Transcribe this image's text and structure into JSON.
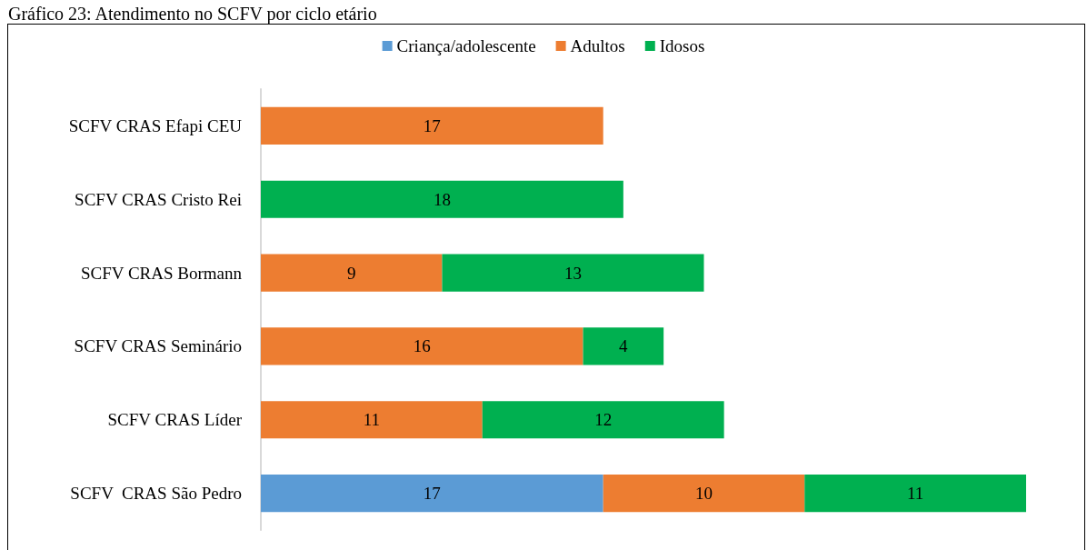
{
  "chart_data": {
    "type": "bar",
    "title": "Gráfico 23: Atendimento no SCFV por ciclo etário",
    "orientation": "horizontal",
    "stacked": true,
    "data_labels": true,
    "legend": "top",
    "categories": [
      "SCFV CRAS Efapi CEU",
      "SCFV CRAS Cristo Rei",
      "SCFV CRAS Bormann",
      "SCFV CRAS Seminário",
      "SCFV CRAS Líder",
      "SCFV  CRAS São Pedro"
    ],
    "series": [
      {
        "name": "Criança/adolescente",
        "color": "#5b9bd5",
        "values": [
          null,
          null,
          null,
          null,
          null,
          17
        ]
      },
      {
        "name": "Adultos",
        "color": "#ed7d31",
        "values": [
          17,
          null,
          9,
          16,
          11,
          10
        ]
      },
      {
        "name": "Idosos",
        "color": "#00b050",
        "values": [
          null,
          18,
          13,
          4,
          12,
          11
        ]
      }
    ]
  }
}
